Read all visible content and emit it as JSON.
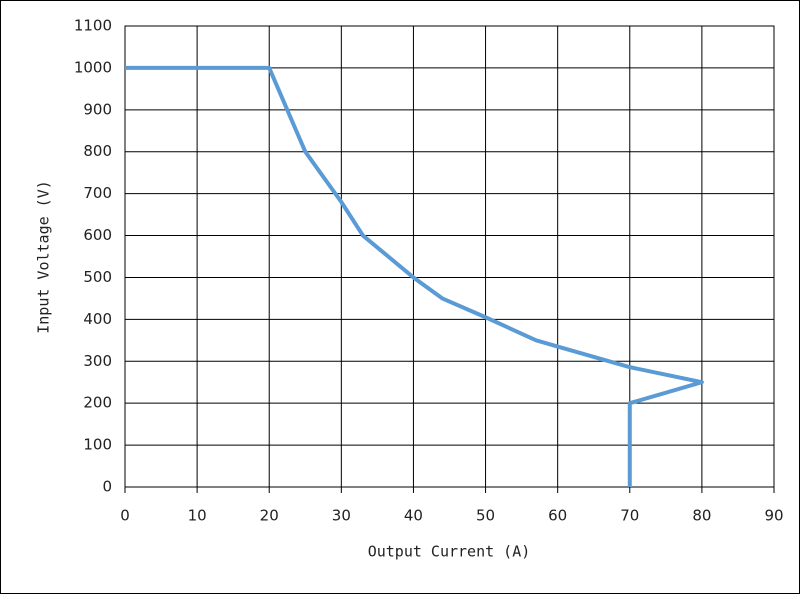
{
  "chart_data": {
    "type": "line",
    "x_label": "Output Current (A)",
    "y_label": "Input Voltage (V)",
    "x": [
      0,
      20,
      25,
      30,
      33,
      40,
      44,
      50,
      57,
      60,
      70,
      80,
      70,
      70
    ],
    "series": [
      {
        "color": "#5b9bd5",
        "values": [
          1000,
          1000,
          800,
          680,
          600,
          500,
          450,
          405,
          350,
          335,
          286,
          250,
          200,
          0
        ]
      }
    ],
    "xlim": [
      0,
      90
    ],
    "xticks": [
      0,
      10,
      20,
      30,
      40,
      50,
      60,
      70,
      80,
      90
    ],
    "ylim": [
      0,
      1100
    ],
    "yticks": [
      0,
      100,
      200,
      300,
      400,
      500,
      600,
      700,
      800,
      900,
      1000,
      1100
    ],
    "grid": true
  }
}
